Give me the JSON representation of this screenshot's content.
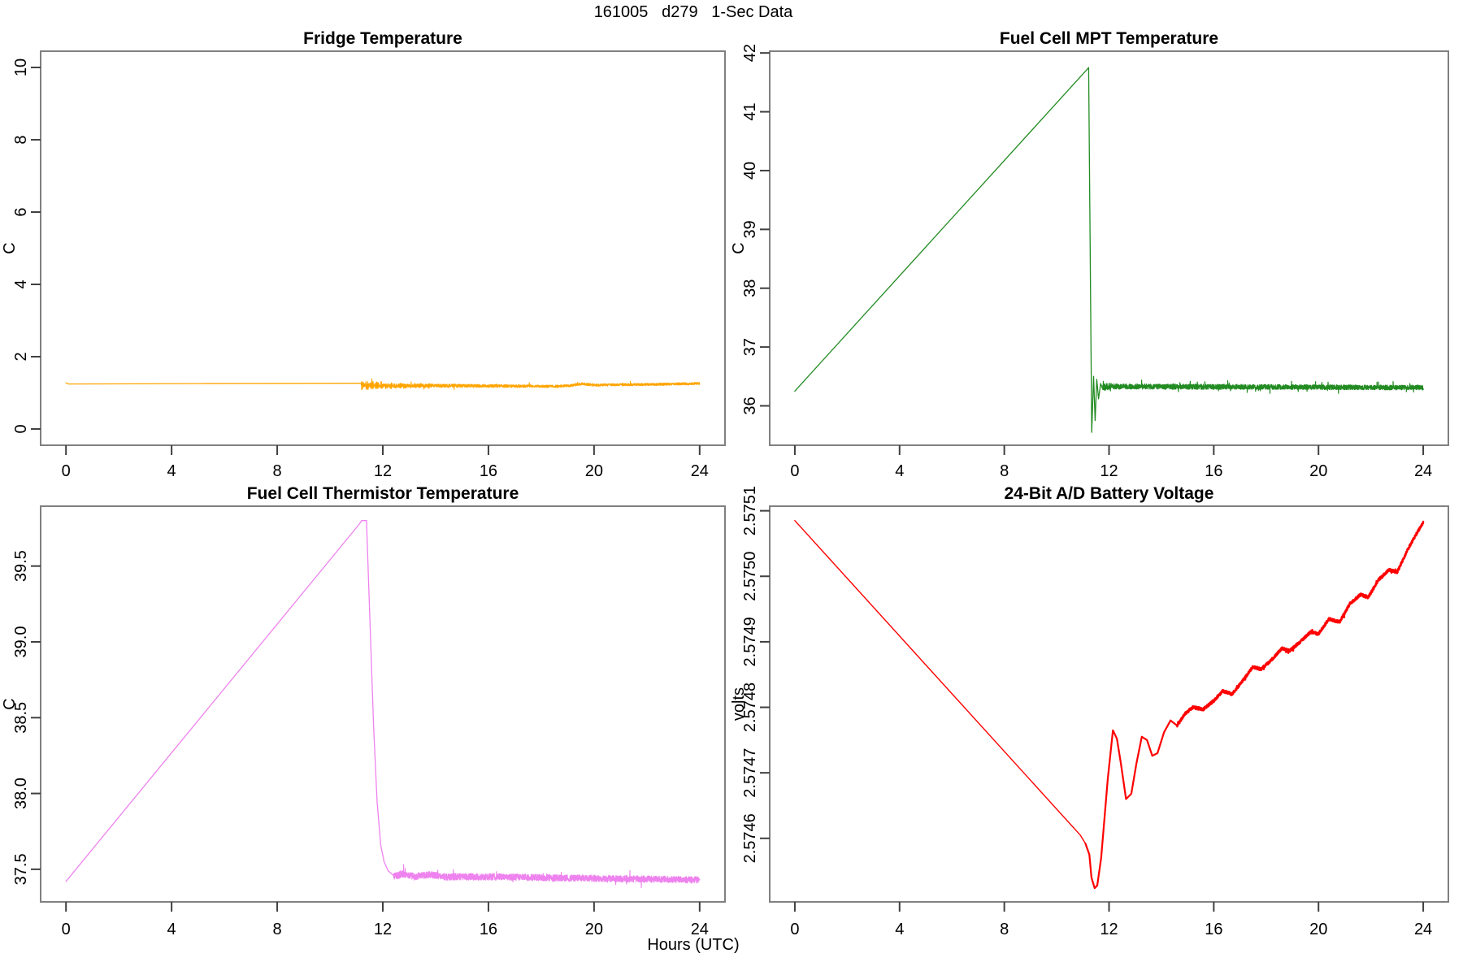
{
  "figure": {
    "title": "161005   d279   1-Sec Data",
    "xlabel": "Hours (UTC)",
    "background": "#ffffff",
    "box_color": "#808080",
    "text_color": "#000000"
  },
  "chart_data": {
    "type": "line",
    "layout": {
      "rows": 2,
      "cols": 2,
      "grid": false,
      "legend": "none"
    },
    "x_label": "Hours (UTC)",
    "panels": [
      {
        "id": "fridge-temperature",
        "title": "Fridge Temperature",
        "ylabel": "C",
        "color": "#FFA500",
        "x_range": [
          -0.96,
          24.96
        ],
        "y_range": [
          -0.45,
          10.45
        ],
        "x_ticks": [
          0,
          4,
          8,
          12,
          16,
          20,
          24
        ],
        "x_tick_labels": [
          "0",
          "4",
          "8",
          "12",
          "16",
          "20",
          "24"
        ],
        "y_ticks": [
          0,
          2,
          4,
          6,
          8,
          10
        ],
        "y_tick_labels": [
          "0",
          "2",
          "4",
          "6",
          "8",
          "10"
        ],
        "segments": [
          {
            "noisy": false,
            "width": 1.3,
            "points": [
              [
                0,
                1.275
              ],
              [
                0.1,
                1.245
              ],
              [
                5,
                1.255
              ],
              [
                11.18,
                1.265
              ]
            ]
          },
          {
            "noisy": true,
            "from": 11.18,
            "to": 24,
            "seed": 11,
            "samples": 2100,
            "width": 1.1,
            "centers": [
              [
                11.18,
                1.215
              ],
              [
                12.5,
                1.2
              ],
              [
                15,
                1.195
              ],
              [
                18.6,
                1.18
              ],
              [
                19.1,
                1.2
              ],
              [
                19.55,
                1.25
              ],
              [
                20.0,
                1.215
              ],
              [
                21,
                1.225
              ],
              [
                22.5,
                1.235
              ],
              [
                24,
                1.26
              ]
            ],
            "amp": [
              [
                11.18,
                0.05
              ],
              [
                14,
                0.045
              ],
              [
                19,
                0.035
              ],
              [
                24,
                0.033
              ]
            ],
            "osc": {
              "freq": 5.5,
              "amp": 2.6,
              "decay": 1.1
            },
            "spike": 0.01
          }
        ]
      },
      {
        "id": "fuel-cell-mpt-temperature",
        "title": "Fuel Cell MPT Temperature",
        "ylabel": "C",
        "color": "#228B22",
        "x_range": [
          -0.96,
          24.96
        ],
        "y_range": [
          35.33,
          42.03
        ],
        "x_ticks": [
          0,
          4,
          8,
          12,
          16,
          20,
          24
        ],
        "x_tick_labels": [
          "0",
          "4",
          "8",
          "12",
          "16",
          "20",
          "24"
        ],
        "y_ticks": [
          36,
          37,
          38,
          39,
          40,
          41,
          42
        ],
        "y_tick_labels": [
          "36",
          "37",
          "38",
          "39",
          "40",
          "41",
          "42"
        ],
        "segments": [
          {
            "noisy": false,
            "width": 1.3,
            "points": [
              [
                0,
                36.25
              ],
              [
                11.22,
                41.75
              ]
            ]
          },
          {
            "noisy": false,
            "width": 1.3,
            "points": [
              [
                11.22,
                41.75
              ],
              [
                11.34,
                35.55
              ],
              [
                11.41,
                36.5
              ],
              [
                11.47,
                35.75
              ],
              [
                11.53,
                36.45
              ],
              [
                11.6,
                36.12
              ],
              [
                11.68,
                36.38
              ],
              [
                11.76,
                36.28
              ]
            ]
          },
          {
            "noisy": true,
            "from": 11.76,
            "to": 24,
            "seed": 22,
            "samples": 2300,
            "width": 1.2,
            "centers": [
              [
                11.76,
                36.33
              ],
              [
                18,
                36.32
              ],
              [
                24,
                36.31
              ]
            ],
            "amp": [
              [
                11.76,
                0.07
              ],
              [
                12.2,
                0.045
              ],
              [
                24,
                0.04
              ]
            ],
            "spike": 0.02
          }
        ]
      },
      {
        "id": "fuel-cell-thermistor-temperature",
        "title": "Fuel Cell Thermistor Temperature",
        "ylabel": "C",
        "color": "#EE82EE",
        "x_range": [
          -0.96,
          24.96
        ],
        "y_range": [
          37.285,
          39.895
        ],
        "x_ticks": [
          0,
          4,
          8,
          12,
          16,
          20,
          24
        ],
        "x_tick_labels": [
          "0",
          "4",
          "8",
          "12",
          "16",
          "20",
          "24"
        ],
        "y_ticks": [
          37.5,
          38.0,
          38.5,
          39.0,
          39.5
        ],
        "y_tick_labels": [
          "37.5",
          "38.0",
          "38.5",
          "39.0",
          "39.5"
        ],
        "segments": [
          {
            "noisy": false,
            "width": 1.3,
            "points": [
              [
                0,
                37.42
              ],
              [
                11.1,
                39.775
              ],
              [
                11.2,
                39.8
              ],
              [
                11.38,
                39.8
              ]
            ]
          },
          {
            "noisy": false,
            "width": 1.3,
            "points": [
              [
                11.38,
                39.8
              ],
              [
                11.52,
                39.1
              ],
              [
                11.65,
                38.45
              ],
              [
                11.78,
                37.95
              ],
              [
                11.92,
                37.66
              ],
              [
                12.05,
                37.55
              ],
              [
                12.2,
                37.49
              ],
              [
                12.4,
                37.46
              ]
            ]
          },
          {
            "noisy": true,
            "from": 12.4,
            "to": 24,
            "seed": 33,
            "samples": 2300,
            "width": 1.1,
            "centers": [
              [
                12.4,
                37.455
              ],
              [
                12.8,
                37.47
              ],
              [
                13.2,
                37.45
              ],
              [
                13.8,
                37.465
              ],
              [
                14.3,
                37.45
              ],
              [
                16,
                37.45
              ],
              [
                18,
                37.445
              ],
              [
                20,
                37.44
              ],
              [
                22,
                37.435
              ],
              [
                24,
                37.43
              ]
            ],
            "amp": [
              [
                12.4,
                0.025
              ],
              [
                14,
                0.022
              ],
              [
                24,
                0.022
              ]
            ],
            "spike": 0.015
          }
        ]
      },
      {
        "id": "battery-voltage",
        "title": "24-Bit A/D Battery Voltage",
        "ylabel": "volts",
        "color": "#FF0000",
        "x_range": [
          -0.96,
          24.96
        ],
        "y_range": [
          2.574503,
          2.575107
        ],
        "x_ticks": [
          0,
          4,
          8,
          12,
          16,
          20,
          24
        ],
        "x_tick_labels": [
          "0",
          "4",
          "8",
          "12",
          "16",
          "20",
          "24"
        ],
        "y_ticks": [
          2.5746,
          2.5747,
          2.5748,
          2.5749,
          2.575,
          2.5751
        ],
        "y_tick_labels": [
          "2.5746",
          "2.5747",
          "2.5748",
          "2.5749",
          "2.5750",
          "2.5751"
        ],
        "segments": [
          {
            "noisy": false,
            "width": 1.4,
            "points": [
              [
                0,
                2.575085
              ],
              [
                10.9,
                2.574605
              ],
              [
                11.1,
                2.574592
              ]
            ]
          },
          {
            "noisy": false,
            "width": 2.2,
            "points": [
              [
                11.1,
                2.574592
              ],
              [
                11.25,
                2.574575
              ],
              [
                11.33,
                2.57454
              ],
              [
                11.45,
                2.574524
              ],
              [
                11.55,
                2.574528
              ],
              [
                11.7,
                2.57457
              ],
              [
                11.95,
                2.57469
              ],
              [
                12.15,
                2.574765
              ],
              [
                12.3,
                2.574752
              ],
              [
                12.45,
                2.574715
              ],
              [
                12.65,
                2.57466
              ],
              [
                12.85,
                2.574668
              ],
              [
                13.05,
                2.574715
              ],
              [
                13.25,
                2.574755
              ],
              [
                13.45,
                2.57475
              ],
              [
                13.65,
                2.574726
              ],
              [
                13.85,
                2.57473
              ],
              [
                14.1,
                2.574762
              ],
              [
                14.35,
                2.57478
              ],
              [
                14.6,
                2.574772
              ]
            ]
          },
          {
            "noisy": true,
            "from": 14.6,
            "to": 24,
            "seed": 44,
            "samples": 1900,
            "width": 2.3,
            "centers": [
              [
                14.6,
                2.574772
              ],
              [
                14.9,
                2.57479
              ],
              [
                15.2,
                2.5748
              ],
              [
                15.6,
                2.574797
              ],
              [
                16.0,
                2.57481
              ],
              [
                16.35,
                2.574825
              ],
              [
                16.7,
                2.57482
              ],
              [
                17.1,
                2.57484
              ],
              [
                17.5,
                2.574862
              ],
              [
                17.8,
                2.574858
              ],
              [
                18.2,
                2.574872
              ],
              [
                18.6,
                2.57489
              ],
              [
                18.9,
                2.574886
              ],
              [
                19.3,
                2.5749
              ],
              [
                19.7,
                2.574915
              ],
              [
                20.0,
                2.574912
              ],
              [
                20.4,
                2.574935
              ],
              [
                20.8,
                2.57493
              ],
              [
                21.2,
                2.574958
              ],
              [
                21.6,
                2.574972
              ],
              [
                21.9,
                2.574968
              ],
              [
                22.3,
                2.574995
              ],
              [
                22.7,
                2.57501
              ],
              [
                23.0,
                2.575006
              ],
              [
                23.4,
                2.57504
              ],
              [
                23.7,
                2.575062
              ],
              [
                24,
                2.575082
              ]
            ],
            "amp": [
              [
                14.6,
                2.2e-06
              ],
              [
                24,
                2.2e-06
              ]
            ],
            "spike": 0.01
          }
        ]
      }
    ]
  }
}
